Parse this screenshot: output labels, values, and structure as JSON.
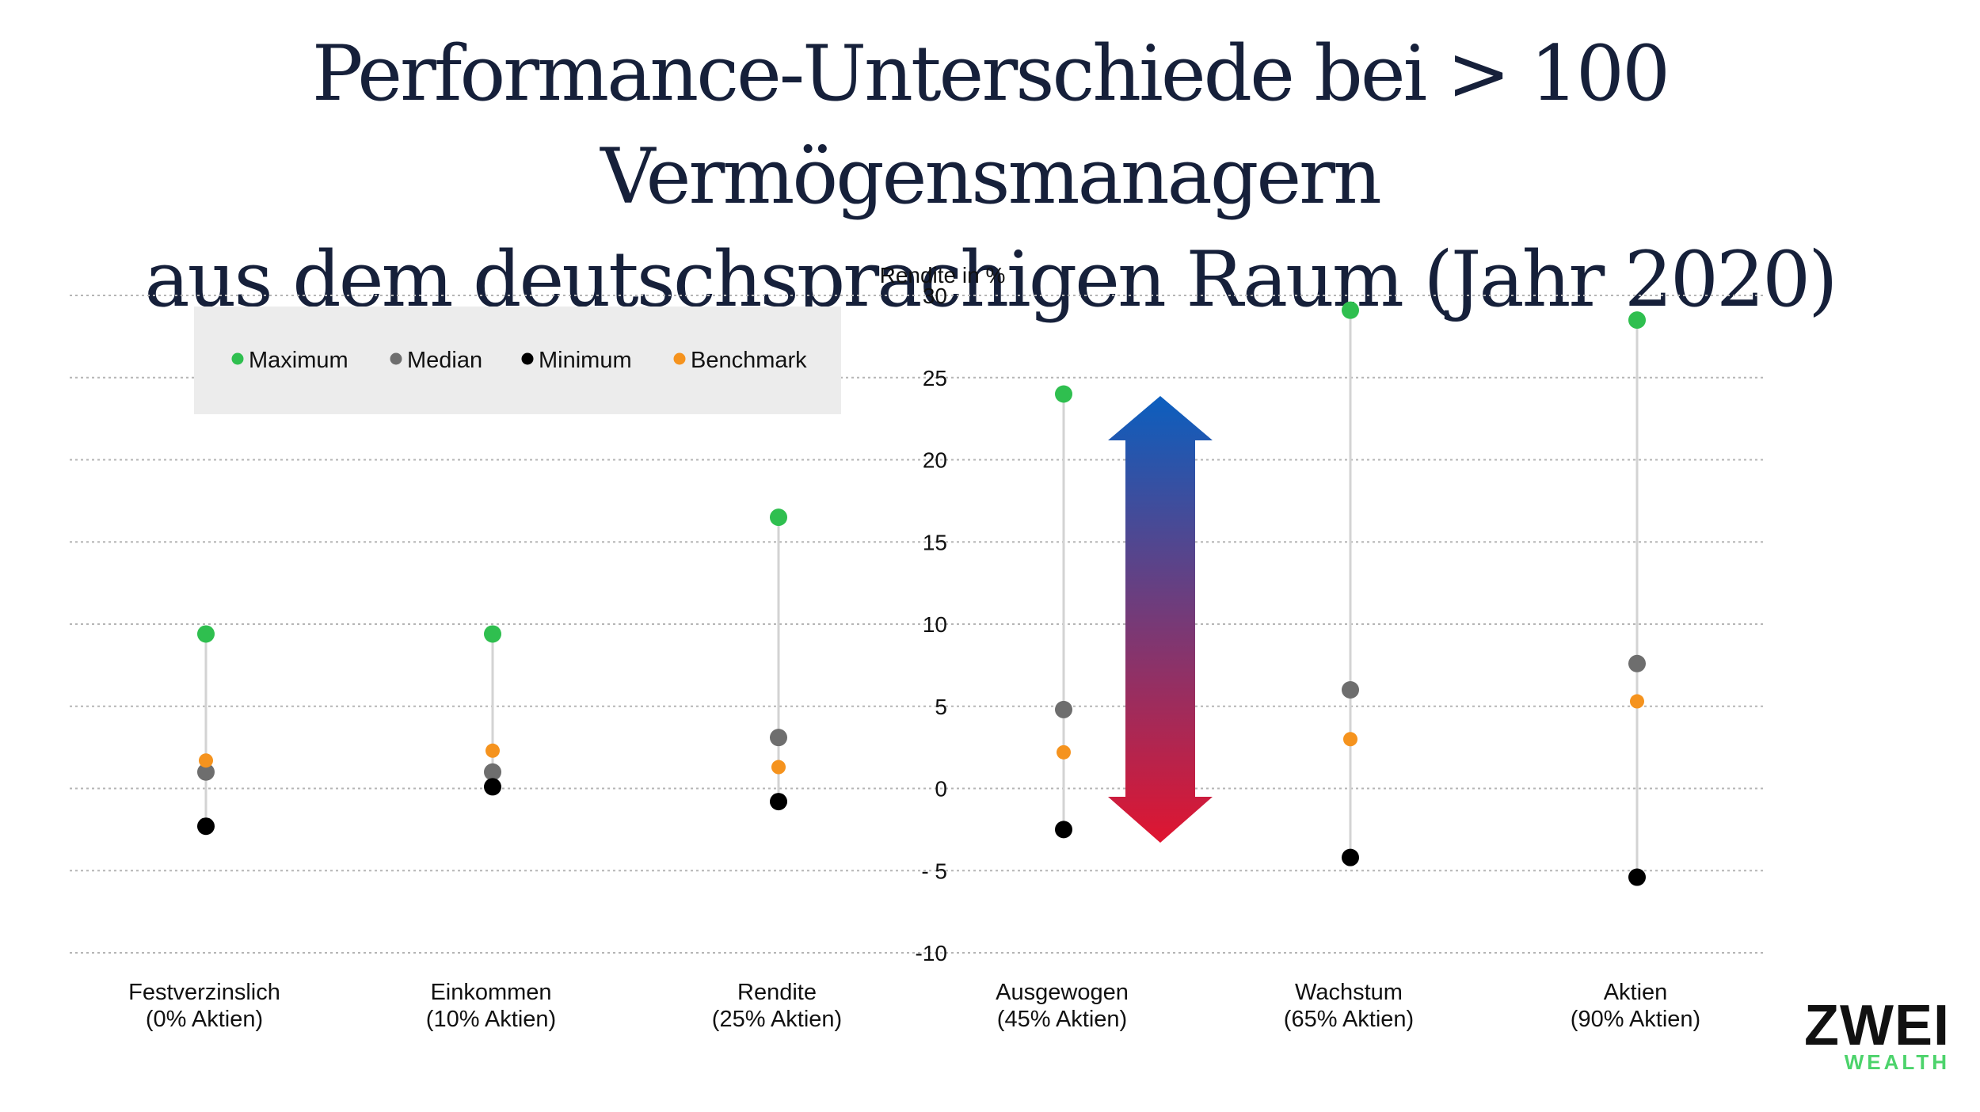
{
  "title": {
    "line1": "Performance-Unterschiede bei > 100 Vermögensmanagern",
    "line2": "aus dem deutschsprachigen Raum (Jahr 2020)"
  },
  "logo": {
    "main": "ZWEI",
    "sub": "WEALTH"
  },
  "colors": {
    "maximum": "#2fbf4f",
    "median": "#6e6e6e",
    "minimum": "#000000",
    "benchmark": "#f5931e",
    "arrow_top": "#0b5fbf",
    "arrow_bottom": "#e01530"
  },
  "chart_data": {
    "type": "scatter",
    "ylabel": "Rendite in %",
    "ylim": [
      -10,
      30
    ],
    "yticks": [
      30,
      25,
      20,
      15,
      10,
      5,
      0,
      -5,
      -10
    ],
    "ytick_labels": [
      "30",
      "25",
      "20",
      "15",
      "10",
      "5",
      "0",
      "- 5",
      "-10"
    ],
    "grid": true,
    "legend_position": "top-left",
    "categories": [
      {
        "line1": "Festverzinslich",
        "line2": "(0% Aktien)"
      },
      {
        "line1": "Einkommen",
        "line2": "(10% Aktien)"
      },
      {
        "line1": "Rendite",
        "line2": "(25% Aktien)"
      },
      {
        "line1": "Ausgewogen",
        "line2": "(45% Aktien)"
      },
      {
        "line1": "Wachstum",
        "line2": "(65% Aktien)"
      },
      {
        "line1": "Aktien",
        "line2": "(90% Aktien)"
      }
    ],
    "series": [
      {
        "name": "Maximum",
        "key": "maximum",
        "values": [
          9.4,
          9.4,
          16.5,
          24.0,
          29.1,
          28.5
        ]
      },
      {
        "name": "Median",
        "key": "median",
        "values": [
          1.0,
          1.0,
          3.1,
          4.8,
          6.0,
          7.6
        ]
      },
      {
        "name": "Minimum",
        "key": "minimum",
        "values": [
          -2.3,
          0.1,
          -0.8,
          -2.5,
          -4.2,
          -5.4
        ]
      },
      {
        "name": "Benchmark",
        "key": "benchmark",
        "values": [
          1.7,
          2.3,
          1.3,
          2.2,
          3.0,
          5.3
        ]
      }
    ]
  }
}
